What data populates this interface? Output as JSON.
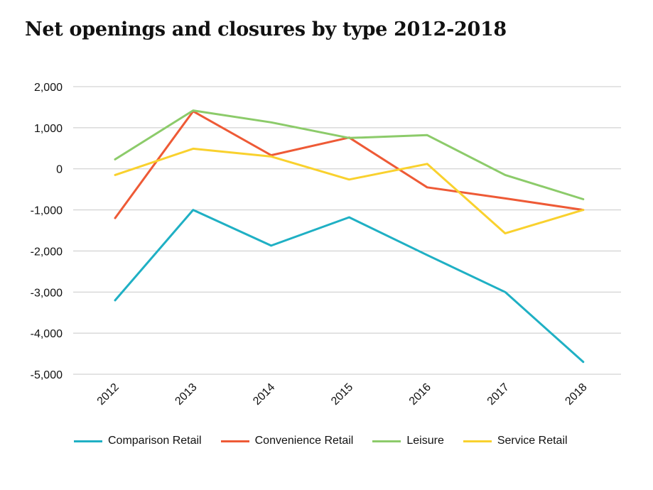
{
  "chart_data": {
    "type": "line",
    "title": "Net openings and closures by type 2012-2018",
    "xlabel": "",
    "ylabel": "",
    "categories": [
      "2012",
      "2013",
      "2014",
      "2015",
      "2016",
      "2017",
      "2018"
    ],
    "ylim": [
      -5000,
      2000
    ],
    "yticks": [
      2000,
      1000,
      0,
      -1000,
      -2000,
      -3000,
      -4000,
      -5000
    ],
    "ytick_labels": [
      "2,000",
      "1,000",
      "0",
      "-1,000",
      "-2,000",
      "-3,000",
      "-4,000",
      "-5,000"
    ],
    "grid": "horizontal",
    "legend_position": "bottom",
    "series": [
      {
        "name": "Comparison Retail",
        "color": "#1fb0c4",
        "values": [
          -3200,
          -1000,
          -1870,
          -1180,
          -2100,
          -3000,
          -4700
        ]
      },
      {
        "name": "Convenience Retail",
        "color": "#ee5a36",
        "values": [
          -1200,
          1400,
          330,
          760,
          -450,
          -720,
          -1000
        ]
      },
      {
        "name": "Leisure",
        "color": "#8ccb6a",
        "values": [
          230,
          1420,
          1130,
          750,
          820,
          -150,
          -740
        ]
      },
      {
        "name": "Service Retail",
        "color": "#f9d12e",
        "values": [
          -150,
          490,
          300,
          -260,
          120,
          -1570,
          -1000
        ]
      }
    ]
  }
}
